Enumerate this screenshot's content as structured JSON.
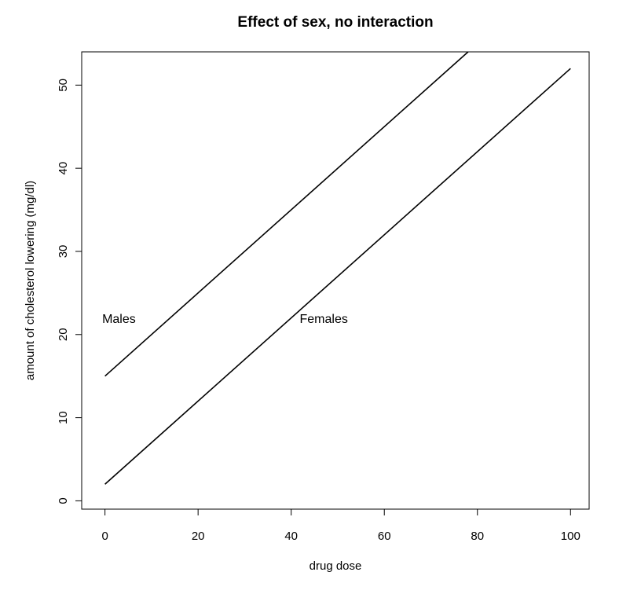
{
  "chart_data": {
    "type": "line",
    "title": "Effect of sex, no interaction",
    "xlabel": "drug dose",
    "ylabel": "amount of cholesterol lowering (mg/dl)",
    "xlim": [
      -5,
      104
    ],
    "ylim": [
      -1,
      54
    ],
    "x_ticks": [
      0,
      20,
      40,
      60,
      80,
      100
    ],
    "y_ticks": [
      0,
      10,
      20,
      30,
      40,
      50
    ],
    "grid": false,
    "legend": "none",
    "series": [
      {
        "name": "Males",
        "x": [
          0,
          78
        ],
        "y": [
          15,
          54
        ]
      },
      {
        "name": "Females",
        "x": [
          0,
          100
        ],
        "y": [
          2,
          52
        ]
      }
    ],
    "annotations": [
      {
        "text": "Males",
        "x": 3,
        "y": 21.8
      },
      {
        "text": "Females",
        "x": 47,
        "y": 21.8
      }
    ],
    "line_color": "#000000"
  }
}
